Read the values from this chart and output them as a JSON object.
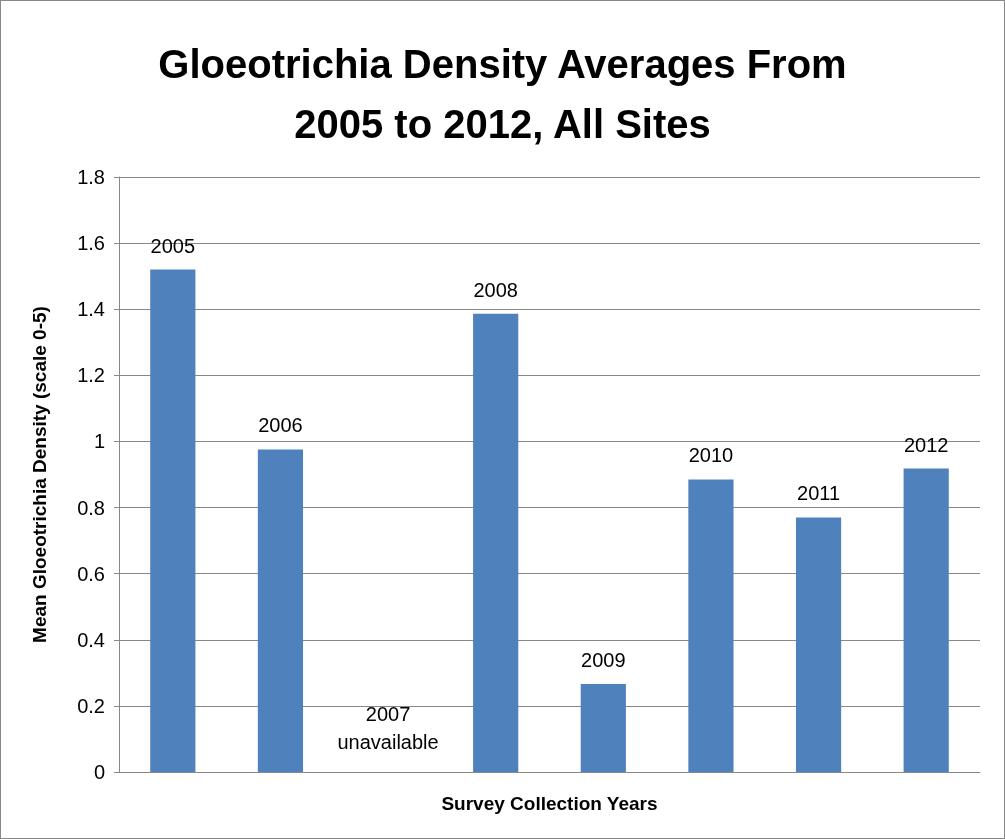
{
  "chart_data": {
    "type": "bar",
    "title": "Gloeotrichia Density Averages From\n2005 to 2012, All Sites",
    "xlabel": "Survey Collection Years",
    "ylabel": "Mean Gloeotrichia Density (scale 0-5)",
    "categories": [
      "2005",
      "2006",
      "2007",
      "2008",
      "2009",
      "2010",
      "2011",
      "2012"
    ],
    "values": [
      1.52,
      0.976,
      null,
      1.386,
      0.266,
      0.885,
      0.77,
      0.918
    ],
    "color": "#4f81bd",
    "ylim": [
      0,
      1.8
    ],
    "yticks": [
      0,
      0.2,
      0.4,
      0.6,
      0.8,
      1,
      1.2,
      1.4,
      1.6,
      1.8
    ],
    "grid": "y",
    "annotations": [
      "2007\nunavailable"
    ]
  }
}
